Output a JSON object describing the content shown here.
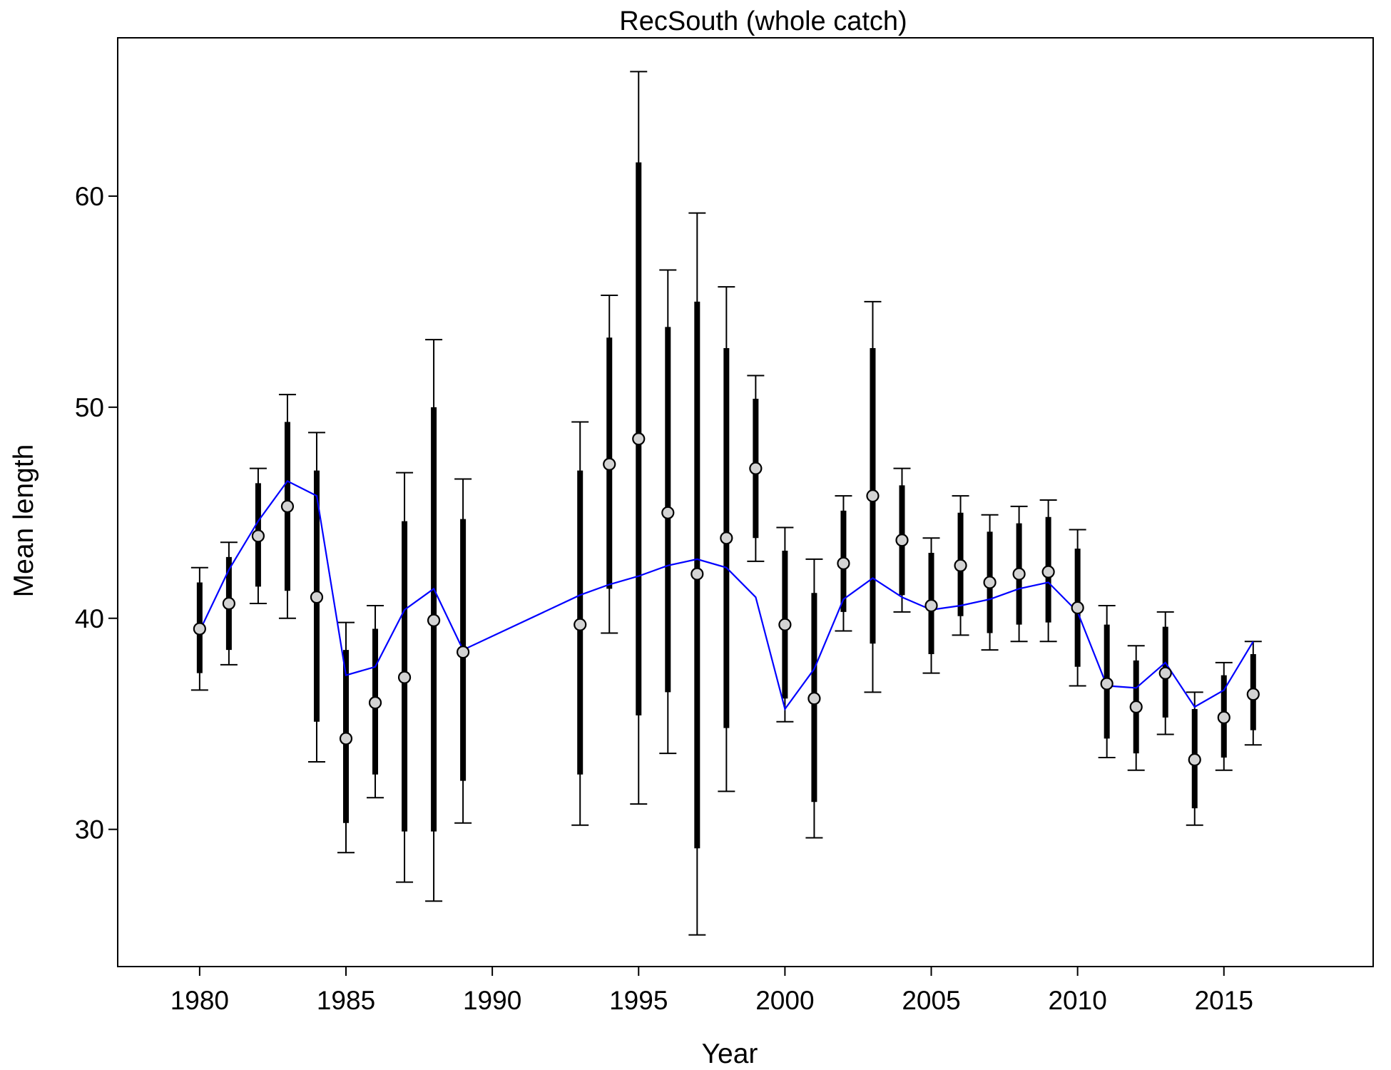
{
  "chart_data": {
    "type": "scatter",
    "title": "RecSouth (whole catch)",
    "xlabel": "Year",
    "ylabel": "Mean length",
    "xlim": [
      1977.2,
      2020.1
    ],
    "ylim": [
      23.5,
      67.5
    ],
    "xticks": [
      1980,
      1985,
      1990,
      1995,
      2000,
      2005,
      2010,
      2015
    ],
    "yticks": [
      30,
      40,
      50,
      60
    ],
    "grid": false,
    "colors": {
      "observed_fill": "#d3d3d3",
      "observed_outline": "#000000",
      "error_bars": "#000000",
      "expected_line": "#0000ff"
    },
    "series": [
      {
        "kind": "observed",
        "points": [
          {
            "x": 1980,
            "y": 39.5,
            "inner": [
              37.4,
              41.7
            ],
            "outer": [
              36.6,
              42.4
            ]
          },
          {
            "x": 1981,
            "y": 40.7,
            "inner": [
              38.5,
              42.9
            ],
            "outer": [
              37.8,
              43.6
            ]
          },
          {
            "x": 1982,
            "y": 43.9,
            "inner": [
              41.5,
              46.4
            ],
            "outer": [
              40.7,
              47.1
            ]
          },
          {
            "x": 1983,
            "y": 45.3,
            "inner": [
              41.3,
              49.3
            ],
            "outer": [
              40.0,
              50.6
            ]
          },
          {
            "x": 1984,
            "y": 41.0,
            "inner": [
              35.1,
              47.0
            ],
            "outer": [
              33.2,
              48.8
            ]
          },
          {
            "x": 1985,
            "y": 34.3,
            "inner": [
              30.3,
              38.5
            ],
            "outer": [
              28.9,
              39.8
            ]
          },
          {
            "x": 1986,
            "y": 36.0,
            "inner": [
              32.6,
              39.5
            ],
            "outer": [
              31.5,
              40.6
            ]
          },
          {
            "x": 1987,
            "y": 37.2,
            "inner": [
              29.9,
              44.6
            ],
            "outer": [
              27.5,
              46.9
            ]
          },
          {
            "x": 1988,
            "y": 39.9,
            "inner": [
              29.9,
              50.0
            ],
            "outer": [
              26.6,
              53.2
            ]
          },
          {
            "x": 1989,
            "y": 38.4,
            "inner": [
              32.3,
              44.7
            ],
            "outer": [
              30.3,
              46.6
            ]
          },
          {
            "x": 1993,
            "y": 39.7,
            "inner": [
              32.6,
              47.0
            ],
            "outer": [
              30.2,
              49.3
            ]
          },
          {
            "x": 1994,
            "y": 47.3,
            "inner": [
              41.4,
              53.3
            ],
            "outer": [
              39.3,
              55.3
            ]
          },
          {
            "x": 1995,
            "y": 48.5,
            "inner": [
              35.4,
              61.6
            ],
            "outer": [
              31.2,
              65.9
            ]
          },
          {
            "x": 1996,
            "y": 45.0,
            "inner": [
              36.5,
              53.8
            ],
            "outer": [
              33.6,
              56.5
            ]
          },
          {
            "x": 1997,
            "y": 42.1,
            "inner": [
              29.1,
              55.0
            ],
            "outer": [
              25.0,
              59.2
            ]
          },
          {
            "x": 1998,
            "y": 43.8,
            "inner": [
              34.8,
              52.8
            ],
            "outer": [
              31.8,
              55.7
            ]
          },
          {
            "x": 1999,
            "y": 47.1,
            "inner": [
              43.8,
              50.4
            ],
            "outer": [
              42.7,
              51.5
            ]
          },
          {
            "x": 2000,
            "y": 39.7,
            "inner": [
              36.2,
              43.2
            ],
            "outer": [
              35.1,
              44.3
            ]
          },
          {
            "x": 2001,
            "y": 36.2,
            "inner": [
              31.3,
              41.2
            ],
            "outer": [
              29.6,
              42.8
            ]
          },
          {
            "x": 2002,
            "y": 42.6,
            "inner": [
              40.3,
              45.1
            ],
            "outer": [
              39.4,
              45.8
            ]
          },
          {
            "x": 2003,
            "y": 45.8,
            "inner": [
              38.8,
              52.8
            ],
            "outer": [
              36.5,
              55.0
            ]
          },
          {
            "x": 2004,
            "y": 43.7,
            "inner": [
              41.1,
              46.3
            ],
            "outer": [
              40.3,
              47.1
            ]
          },
          {
            "x": 2005,
            "y": 40.6,
            "inner": [
              38.3,
              43.1
            ],
            "outer": [
              37.4,
              43.8
            ]
          },
          {
            "x": 2006,
            "y": 42.5,
            "inner": [
              40.1,
              45.0
            ],
            "outer": [
              39.2,
              45.8
            ]
          },
          {
            "x": 2007,
            "y": 41.7,
            "inner": [
              39.3,
              44.1
            ],
            "outer": [
              38.5,
              44.9
            ]
          },
          {
            "x": 2008,
            "y": 42.1,
            "inner": [
              39.7,
              44.5
            ],
            "outer": [
              38.9,
              45.3
            ]
          },
          {
            "x": 2009,
            "y": 42.2,
            "inner": [
              39.8,
              44.8
            ],
            "outer": [
              38.9,
              45.6
            ]
          },
          {
            "x": 2010,
            "y": 40.5,
            "inner": [
              37.7,
              43.3
            ],
            "outer": [
              36.8,
              44.2
            ]
          },
          {
            "x": 2011,
            "y": 36.9,
            "inner": [
              34.3,
              39.7
            ],
            "outer": [
              33.4,
              40.6
            ]
          },
          {
            "x": 2012,
            "y": 35.8,
            "inner": [
              33.6,
              38.0
            ],
            "outer": [
              32.8,
              38.7
            ]
          },
          {
            "x": 2013,
            "y": 37.4,
            "inner": [
              35.3,
              39.6
            ],
            "outer": [
              34.5,
              40.3
            ]
          },
          {
            "x": 2014,
            "y": 33.3,
            "inner": [
              31.0,
              35.7
            ],
            "outer": [
              30.2,
              36.5
            ]
          },
          {
            "x": 2015,
            "y": 35.3,
            "inner": [
              33.4,
              37.3
            ],
            "outer": [
              32.8,
              37.9
            ]
          },
          {
            "x": 2016,
            "y": 36.4,
            "inner": [
              34.7,
              38.3
            ],
            "outer": [
              34.0,
              38.9
            ]
          }
        ]
      },
      {
        "kind": "expected",
        "x": [
          1980,
          1981,
          1982,
          1983,
          1984,
          1985,
          1986,
          1987,
          1988,
          1989,
          1993,
          1994,
          1995,
          1996,
          1997,
          1998,
          1999,
          2000,
          2001,
          2002,
          2003,
          2004,
          2005,
          2006,
          2007,
          2008,
          2009,
          2010,
          2011,
          2012,
          2013,
          2014,
          2015,
          2016
        ],
        "y": [
          39.4,
          42.3,
          44.6,
          46.5,
          45.8,
          37.3,
          37.7,
          40.4,
          41.4,
          38.5,
          41.1,
          41.6,
          42.0,
          42.5,
          42.8,
          42.4,
          41.0,
          35.7,
          37.6,
          40.9,
          41.9,
          41.0,
          40.4,
          40.6,
          40.9,
          41.4,
          41.7,
          40.3,
          36.8,
          36.7,
          37.9,
          35.8,
          36.6,
          38.9
        ]
      }
    ]
  }
}
